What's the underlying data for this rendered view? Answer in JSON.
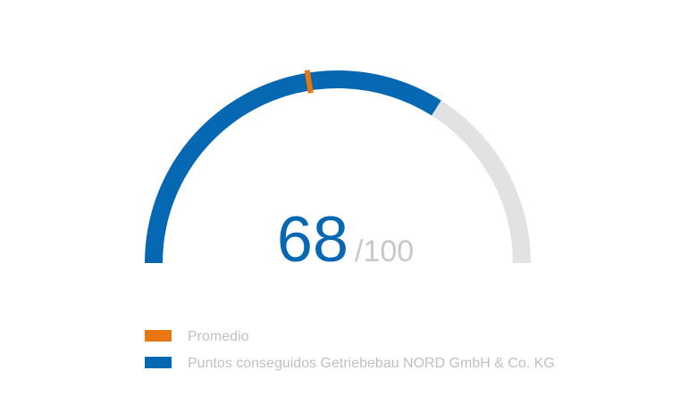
{
  "chart_data": {
    "type": "gauge",
    "min": 0,
    "max": {
      "value": 100,
      "label": "/100"
    },
    "track_color": "#e1e2e2",
    "series": [
      {
        "name": "Promedio",
        "color": "#e87711",
        "values": [
          45
        ]
      },
      {
        "name": "Puntos conseguidos Getriebebau NORD GmbH & Co. KG",
        "color": "#0668b3",
        "values": [
          68
        ]
      }
    ]
  }
}
